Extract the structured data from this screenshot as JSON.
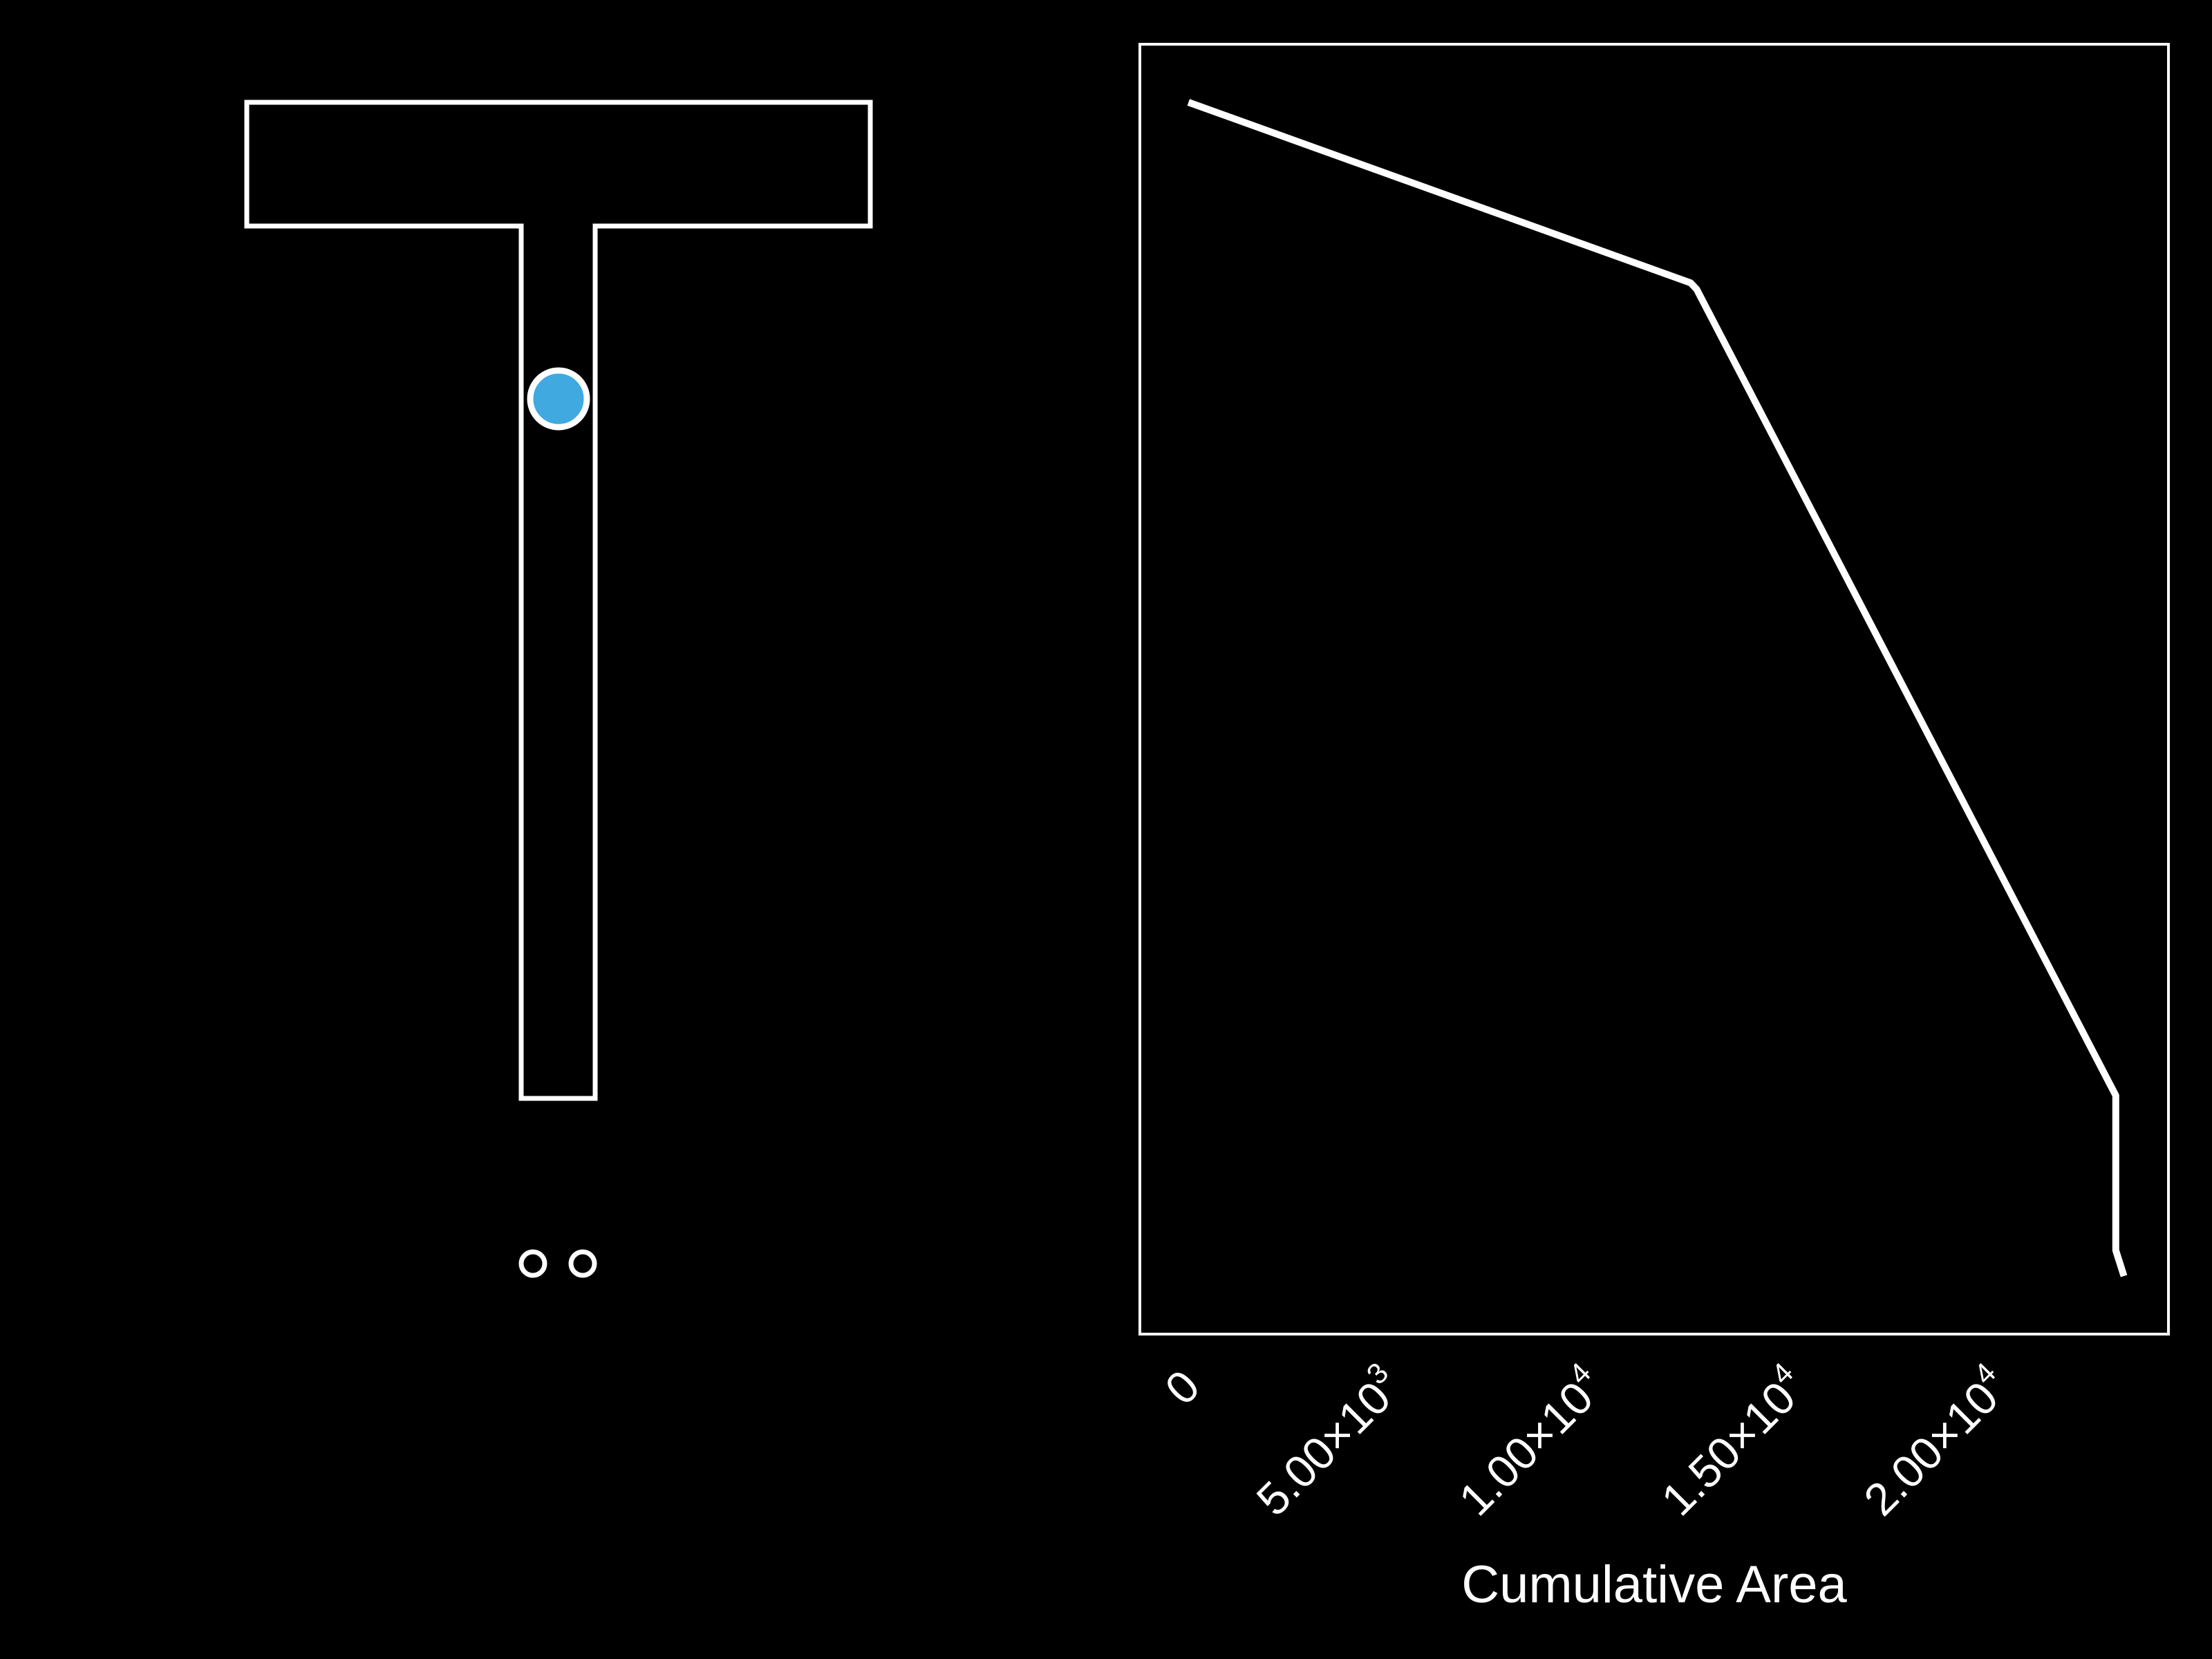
{
  "colors": {
    "background": "#000000",
    "foreground": "#ffffff",
    "marker": "#3fa9e0"
  },
  "shape": {
    "type": "T-shaped pipe outline",
    "marker": "filled circle inside the stem",
    "extra": "two small hollow circles below the stem"
  },
  "chart_data": {
    "type": "line",
    "title": "",
    "xlabel": "Cumulative Area",
    "ylabel": "",
    "x_ticks": [
      {
        "value": 0,
        "label": "0"
      },
      {
        "value": 5000,
        "label": "5.00×10",
        "exp": "3"
      },
      {
        "value": 10000,
        "label": "1.00×10",
        "exp": "4"
      },
      {
        "value": 15000,
        "label": "1.50×10",
        "exp": "4"
      },
      {
        "value": 20000,
        "label": "2.00×10",
        "exp": "4"
      }
    ],
    "xlim": [
      -1200,
      24200
    ],
    "ylim": [
      0,
      1
    ],
    "grid": false,
    "series": [
      {
        "x": [
          0,
          12400,
          12550,
          22900,
          22900,
          23100
        ],
        "y": [
          0.955,
          0.815,
          0.81,
          0.185,
          0.065,
          0.045
        ]
      }
    ]
  }
}
